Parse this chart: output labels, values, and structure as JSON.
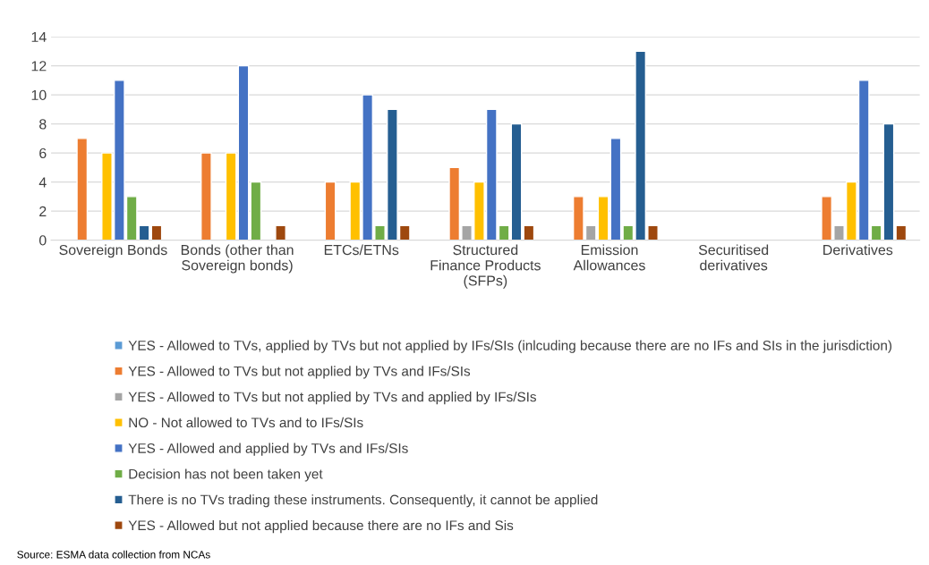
{
  "chart_data": {
    "type": "bar",
    "categories": [
      "Sovereign Bonds",
      "Bonds (other than\nSovereign bonds)",
      "ETCs/ETNs",
      "Structured\nFinance Products\n(SFPs)",
      "Emission\nAllowances",
      "Securitised\nderivatives",
      "Derivatives"
    ],
    "series": [
      {
        "name": "YES - Allowed to TVs, applied by TVs but not applied by IFs/SIs (inlcuding because there are no IFs and SIs in the jurisdiction)",
        "color": "#5b9bd5",
        "values": [
          null,
          null,
          null,
          null,
          null,
          null,
          null
        ]
      },
      {
        "name": "YES - Allowed to TVs but not applied by TVs and IFs/SIs",
        "color": "#ed7d31",
        "values": [
          7,
          6,
          4,
          5,
          3,
          null,
          3
        ]
      },
      {
        "name": "YES - Allowed to TVs but not applied by TVs and applied by IFs/SIs",
        "color": "#a5a5a5",
        "values": [
          null,
          null,
          null,
          1,
          1,
          null,
          1
        ]
      },
      {
        "name": "NO - Not allowed to TVs and to IFs/SIs",
        "color": "#ffc000",
        "values": [
          6,
          6,
          4,
          4,
          3,
          null,
          4
        ]
      },
      {
        "name": "YES - Allowed and applied by TVs and IFs/SIs",
        "color": "#4472c4",
        "values": [
          11,
          12,
          10,
          9,
          7,
          null,
          11
        ]
      },
      {
        "name": "Decision has not been taken yet",
        "color": "#70ad47",
        "values": [
          3,
          4,
          1,
          1,
          1,
          null,
          1
        ]
      },
      {
        "name": "There is no TVs trading these instruments. Consequently, it cannot be applied",
        "color": "#255e91",
        "values": [
          1,
          null,
          9,
          8,
          13,
          null,
          8
        ]
      },
      {
        "name": "YES - Allowed but not applied because there are no IFs and Sis",
        "color": "#9e480e",
        "values": [
          1,
          1,
          1,
          1,
          1,
          null,
          1
        ]
      }
    ],
    "ylim": [
      0,
      14
    ],
    "yticks": [
      0,
      2,
      4,
      6,
      8,
      10,
      12,
      14
    ],
    "grid": "y",
    "legend": "bottom",
    "annotations": [
      "Source: ESMA data collection from NCAs"
    ]
  }
}
